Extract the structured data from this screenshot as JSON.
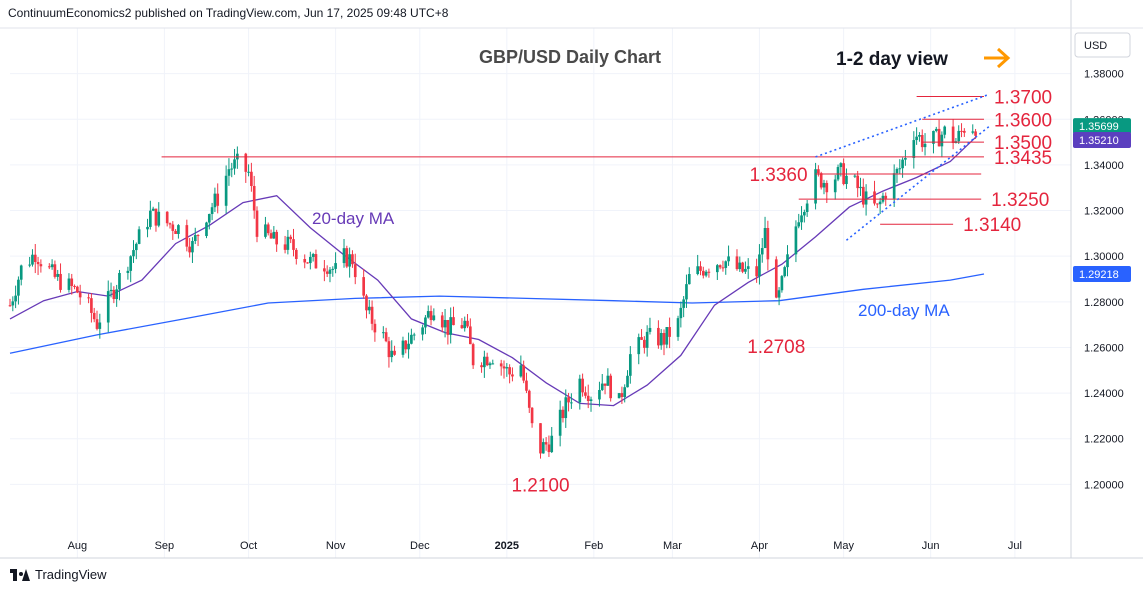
{
  "header": {
    "publisher_line": "ContinuumEconomics2 published on TradingView.com, Jun 17, 2025 09:48 UTC+8"
  },
  "footer": {
    "brand": "TradingView"
  },
  "colors": {
    "up": "#089981",
    "down": "#f23645",
    "ma20": "#673ab7",
    "ma200": "#2962ff",
    "level": "#e4253d",
    "trend": "#2962ff",
    "arrow": "#ff9800",
    "last_bg": "#089981",
    "ma20_bg": "#5b3fbf",
    "ma200_bg": "#2962ff"
  },
  "chart_data": {
    "type": "candlestick",
    "title": "GBP/USD Daily Chart",
    "view_note": "1-2 day view",
    "currency_label": "USD",
    "ylim": [
      1.18,
      1.4
    ],
    "y_ticks": [
      "1.20000",
      "1.22000",
      "1.24000",
      "1.26000",
      "1.28000",
      "1.30000",
      "1.32000",
      "1.34000",
      "1.36000",
      "1.38000"
    ],
    "x_ticks": [
      "Aug",
      "Sep",
      "Oct",
      "Nov",
      "Dec",
      "2025",
      "Feb",
      "Mar",
      "Apr",
      "May",
      "Jun",
      "Jul"
    ],
    "x_range": [
      "2024-07-08",
      "2025-07-21"
    ],
    "last_price": {
      "label": "1.35699",
      "value": 1.35699
    },
    "ma20_value": {
      "label": "1.35210",
      "value": 1.3521
    },
    "ma200_value": {
      "label": "1.29218",
      "value": 1.29218
    },
    "ma20_label": "20-day MA",
    "ma200_label": "200-day MA",
    "levels": [
      {
        "label": "1.3700",
        "value": 1.37,
        "from": "2025-05-27",
        "to": "2025-06-20",
        "side": "right"
      },
      {
        "label": "1.3600",
        "value": 1.36,
        "from": "2025-05-29",
        "to": "2025-06-20",
        "side": "right"
      },
      {
        "label": "1.3500",
        "value": 1.35,
        "from": "2025-05-29",
        "to": "2025-06-20",
        "side": "right"
      },
      {
        "label": "1.3435",
        "value": 1.3435,
        "from": "2024-08-31",
        "to": "2025-06-20",
        "side": "right"
      },
      {
        "label": "1.3360",
        "value": 1.336,
        "from": "2025-04-21",
        "to": "2025-06-19",
        "side": "left"
      },
      {
        "label": "1.3250",
        "value": 1.325,
        "from": "2025-04-15",
        "to": "2025-06-19",
        "side": "right"
      },
      {
        "label": "1.3140",
        "value": 1.314,
        "from": "2025-05-14",
        "to": "2025-06-09",
        "side": "right"
      }
    ],
    "extreme_labels": [
      {
        "label": "1.2100",
        "value": 1.21,
        "date": "2025-01-13"
      },
      {
        "label": "1.2708",
        "value": 1.2708,
        "date": "2025-04-07"
      }
    ],
    "trendlines": [
      {
        "from": [
          "2025-04-21",
          1.3435
        ],
        "to": [
          "2025-06-22",
          1.371
        ]
      },
      {
        "from": [
          "2025-05-02",
          1.307
        ],
        "to": [
          "2025-06-22",
          1.357
        ]
      }
    ],
    "ma20": [
      [
        "2024-07-08",
        1.2725
      ],
      [
        "2024-07-20",
        1.2805
      ],
      [
        "2024-08-01",
        1.2845
      ],
      [
        "2024-08-12",
        1.2825
      ],
      [
        "2024-08-24",
        1.2895
      ],
      [
        "2024-09-05",
        1.3055
      ],
      [
        "2024-09-17",
        1.3135
      ],
      [
        "2024-09-29",
        1.3235
      ],
      [
        "2024-10-11",
        1.3265
      ],
      [
        "2024-10-23",
        1.3125
      ],
      [
        "2024-11-04",
        1.3005
      ],
      [
        "2024-11-16",
        1.2895
      ],
      [
        "2024-11-28",
        1.2725
      ],
      [
        "2024-12-10",
        1.2665
      ],
      [
        "2024-12-22",
        1.2635
      ],
      [
        "2025-01-03",
        1.2555
      ],
      [
        "2025-01-15",
        1.2445
      ],
      [
        "2025-01-27",
        1.2355
      ],
      [
        "2025-02-08",
        1.2345
      ],
      [
        "2025-02-20",
        1.2435
      ],
      [
        "2025-03-04",
        1.2565
      ],
      [
        "2025-03-16",
        1.2785
      ],
      [
        "2025-03-28",
        1.2885
      ],
      [
        "2025-04-09",
        1.2965
      ],
      [
        "2025-04-21",
        1.3085
      ],
      [
        "2025-05-03",
        1.3215
      ],
      [
        "2025-05-15",
        1.3285
      ],
      [
        "2025-05-27",
        1.3345
      ],
      [
        "2025-06-08",
        1.3415
      ],
      [
        "2025-06-17",
        1.3521
      ]
    ],
    "ma200": [
      [
        "2024-07-08",
        1.2575
      ],
      [
        "2024-08-08",
        1.2655
      ],
      [
        "2024-09-08",
        1.2725
      ],
      [
        "2024-10-08",
        1.2795
      ],
      [
        "2024-11-08",
        1.2815
      ],
      [
        "2024-12-08",
        1.2825
      ],
      [
        "2025-01-08",
        1.2815
      ],
      [
        "2025-02-08",
        1.2805
      ],
      [
        "2025-03-08",
        1.2795
      ],
      [
        "2025-04-08",
        1.2805
      ],
      [
        "2025-05-08",
        1.2855
      ],
      [
        "2025-06-08",
        1.2895
      ],
      [
        "2025-06-20",
        1.2922
      ]
    ],
    "close_path": [
      [
        "2024-07-08",
        1.2785
      ],
      [
        "2024-07-12",
        1.2945
      ],
      [
        "2024-07-17",
        1.3015
      ],
      [
        "2024-07-24",
        1.2905
      ],
      [
        "2024-08-01",
        1.2845
      ],
      [
        "2024-08-05",
        1.2775
      ],
      [
        "2024-08-08",
        1.2705
      ],
      [
        "2024-08-14",
        1.2855
      ],
      [
        "2024-08-20",
        1.3005
      ],
      [
        "2024-08-27",
        1.3185
      ],
      [
        "2024-09-02",
        1.3145
      ],
      [
        "2024-09-06",
        1.3125
      ],
      [
        "2024-09-11",
        1.3045
      ],
      [
        "2024-09-16",
        1.3185
      ],
      [
        "2024-09-20",
        1.3255
      ],
      [
        "2024-09-24",
        1.3385
      ],
      [
        "2024-09-27",
        1.3405
      ],
      [
        "2024-10-01",
        1.3365
      ],
      [
        "2024-10-04",
        1.3125
      ],
      [
        "2024-10-10",
        1.3065
      ],
      [
        "2024-10-16",
        1.3045
      ],
      [
        "2024-10-23",
        1.2975
      ],
      [
        "2024-10-29",
        1.2965
      ],
      [
        "2024-11-01",
        1.2935
      ],
      [
        "2024-11-04",
        1.2995
      ],
      [
        "2024-11-07",
        1.2985
      ],
      [
        "2024-11-12",
        1.2755
      ],
      [
        "2024-11-18",
        1.2645
      ],
      [
        "2024-11-22",
        1.2535
      ],
      [
        "2024-11-26",
        1.2615
      ],
      [
        "2024-12-02",
        1.2705
      ],
      [
        "2024-12-06",
        1.2785
      ],
      [
        "2024-12-11",
        1.2685
      ],
      [
        "2024-12-17",
        1.2705
      ],
      [
        "2024-12-20",
        1.2545
      ],
      [
        "2024-12-27",
        1.2565
      ],
      [
        "2025-01-02",
        1.2485
      ],
      [
        "2025-01-06",
        1.2525
      ],
      [
        "2025-01-10",
        1.2245
      ],
      [
        "2025-01-13",
        1.2155
      ],
      [
        "2025-01-17",
        1.2195
      ],
      [
        "2025-01-22",
        1.2345
      ],
      [
        "2025-01-27",
        1.2455
      ],
      [
        "2025-01-31",
        1.2395
      ],
      [
        "2025-02-05",
        1.2465
      ],
      [
        "2025-02-10",
        1.2355
      ],
      [
        "2025-02-14",
        1.2565
      ],
      [
        "2025-02-20",
        1.2645
      ],
      [
        "2025-02-26",
        1.2635
      ],
      [
        "2025-03-03",
        1.2705
      ],
      [
        "2025-03-07",
        1.2905
      ],
      [
        "2025-03-13",
        1.2955
      ],
      [
        "2025-03-19",
        1.2985
      ],
      [
        "2025-03-25",
        1.2935
      ],
      [
        "2025-03-31",
        1.2925
      ],
      [
        "2025-04-03",
        1.3105
      ],
      [
        "2025-04-07",
        1.2775
      ],
      [
        "2025-04-10",
        1.2925
      ],
      [
        "2025-04-15",
        1.3185
      ],
      [
        "2025-04-21",
        1.3345
      ],
      [
        "2025-04-25",
        1.3325
      ],
      [
        "2025-04-30",
        1.3365
      ],
      [
        "2025-05-05",
        1.3315
      ],
      [
        "2025-05-09",
        1.3245
      ],
      [
        "2025-05-13",
        1.3205
      ],
      [
        "2025-05-16",
        1.3285
      ],
      [
        "2025-05-21",
        1.3385
      ],
      [
        "2025-05-26",
        1.3545
      ],
      [
        "2025-05-30",
        1.3495
      ],
      [
        "2025-06-03",
        1.3515
      ],
      [
        "2025-06-06",
        1.3545
      ],
      [
        "2025-06-10",
        1.3505
      ],
      [
        "2025-06-13",
        1.3565
      ],
      [
        "2025-06-17",
        1.357
      ]
    ]
  }
}
